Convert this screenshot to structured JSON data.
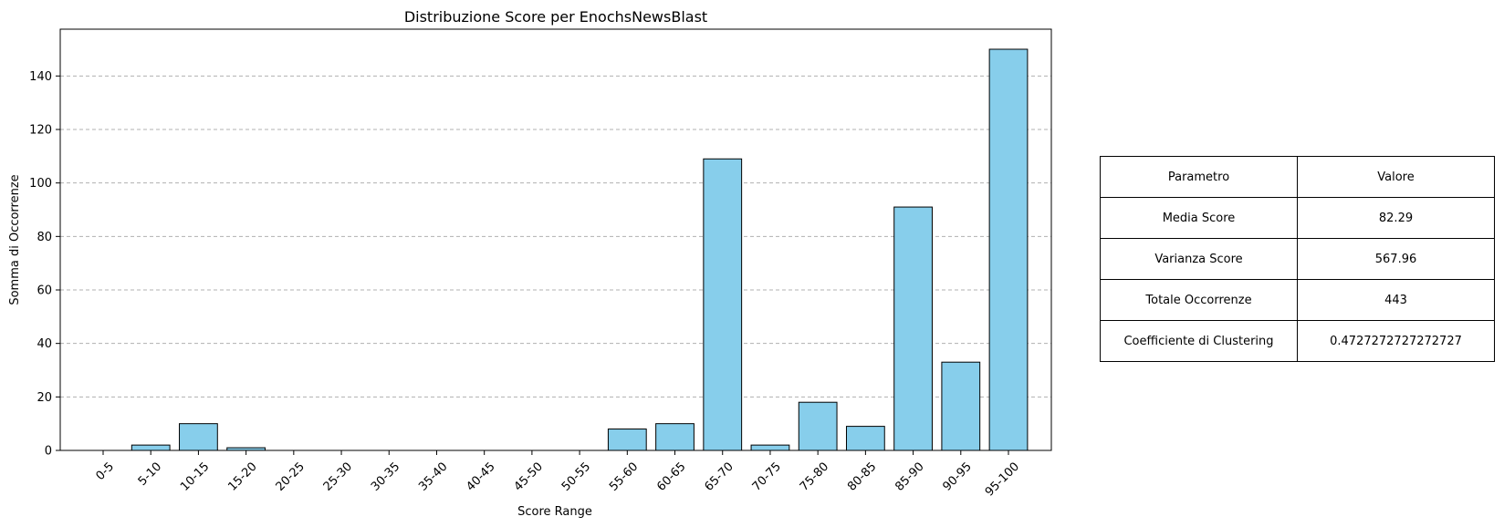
{
  "chart_data": {
    "type": "bar",
    "title": "Distribuzione Score per EnochsNewsBlast",
    "xlabel": "Score Range",
    "ylabel": "Somma di Occorrenze",
    "categories": [
      "0-5",
      "5-10",
      "10-15",
      "15-20",
      "20-25",
      "25-30",
      "30-35",
      "35-40",
      "40-45",
      "45-50",
      "50-55",
      "55-60",
      "60-65",
      "65-70",
      "70-75",
      "75-80",
      "80-85",
      "85-90",
      "90-95",
      "95-100"
    ],
    "values": [
      0,
      2,
      10,
      1,
      0,
      0,
      0,
      0,
      0,
      0,
      0,
      8,
      10,
      109,
      2,
      18,
      9,
      91,
      33,
      150
    ],
    "ylim": [
      0,
      157.5
    ],
    "yticks": [
      0,
      20,
      40,
      60,
      80,
      100,
      120,
      140
    ],
    "grid": "y-dashed",
    "bar_color": "#87ceeb",
    "edge_color": "#000000"
  },
  "table": {
    "headers": [
      "Parametro",
      "Valore"
    ],
    "rows": [
      [
        "Media Score",
        "82.29"
      ],
      [
        "Varianza Score",
        "567.96"
      ],
      [
        "Totale Occorrenze",
        "443"
      ],
      [
        "Coefficiente di Clustering",
        "0.4727272727272727"
      ]
    ]
  }
}
